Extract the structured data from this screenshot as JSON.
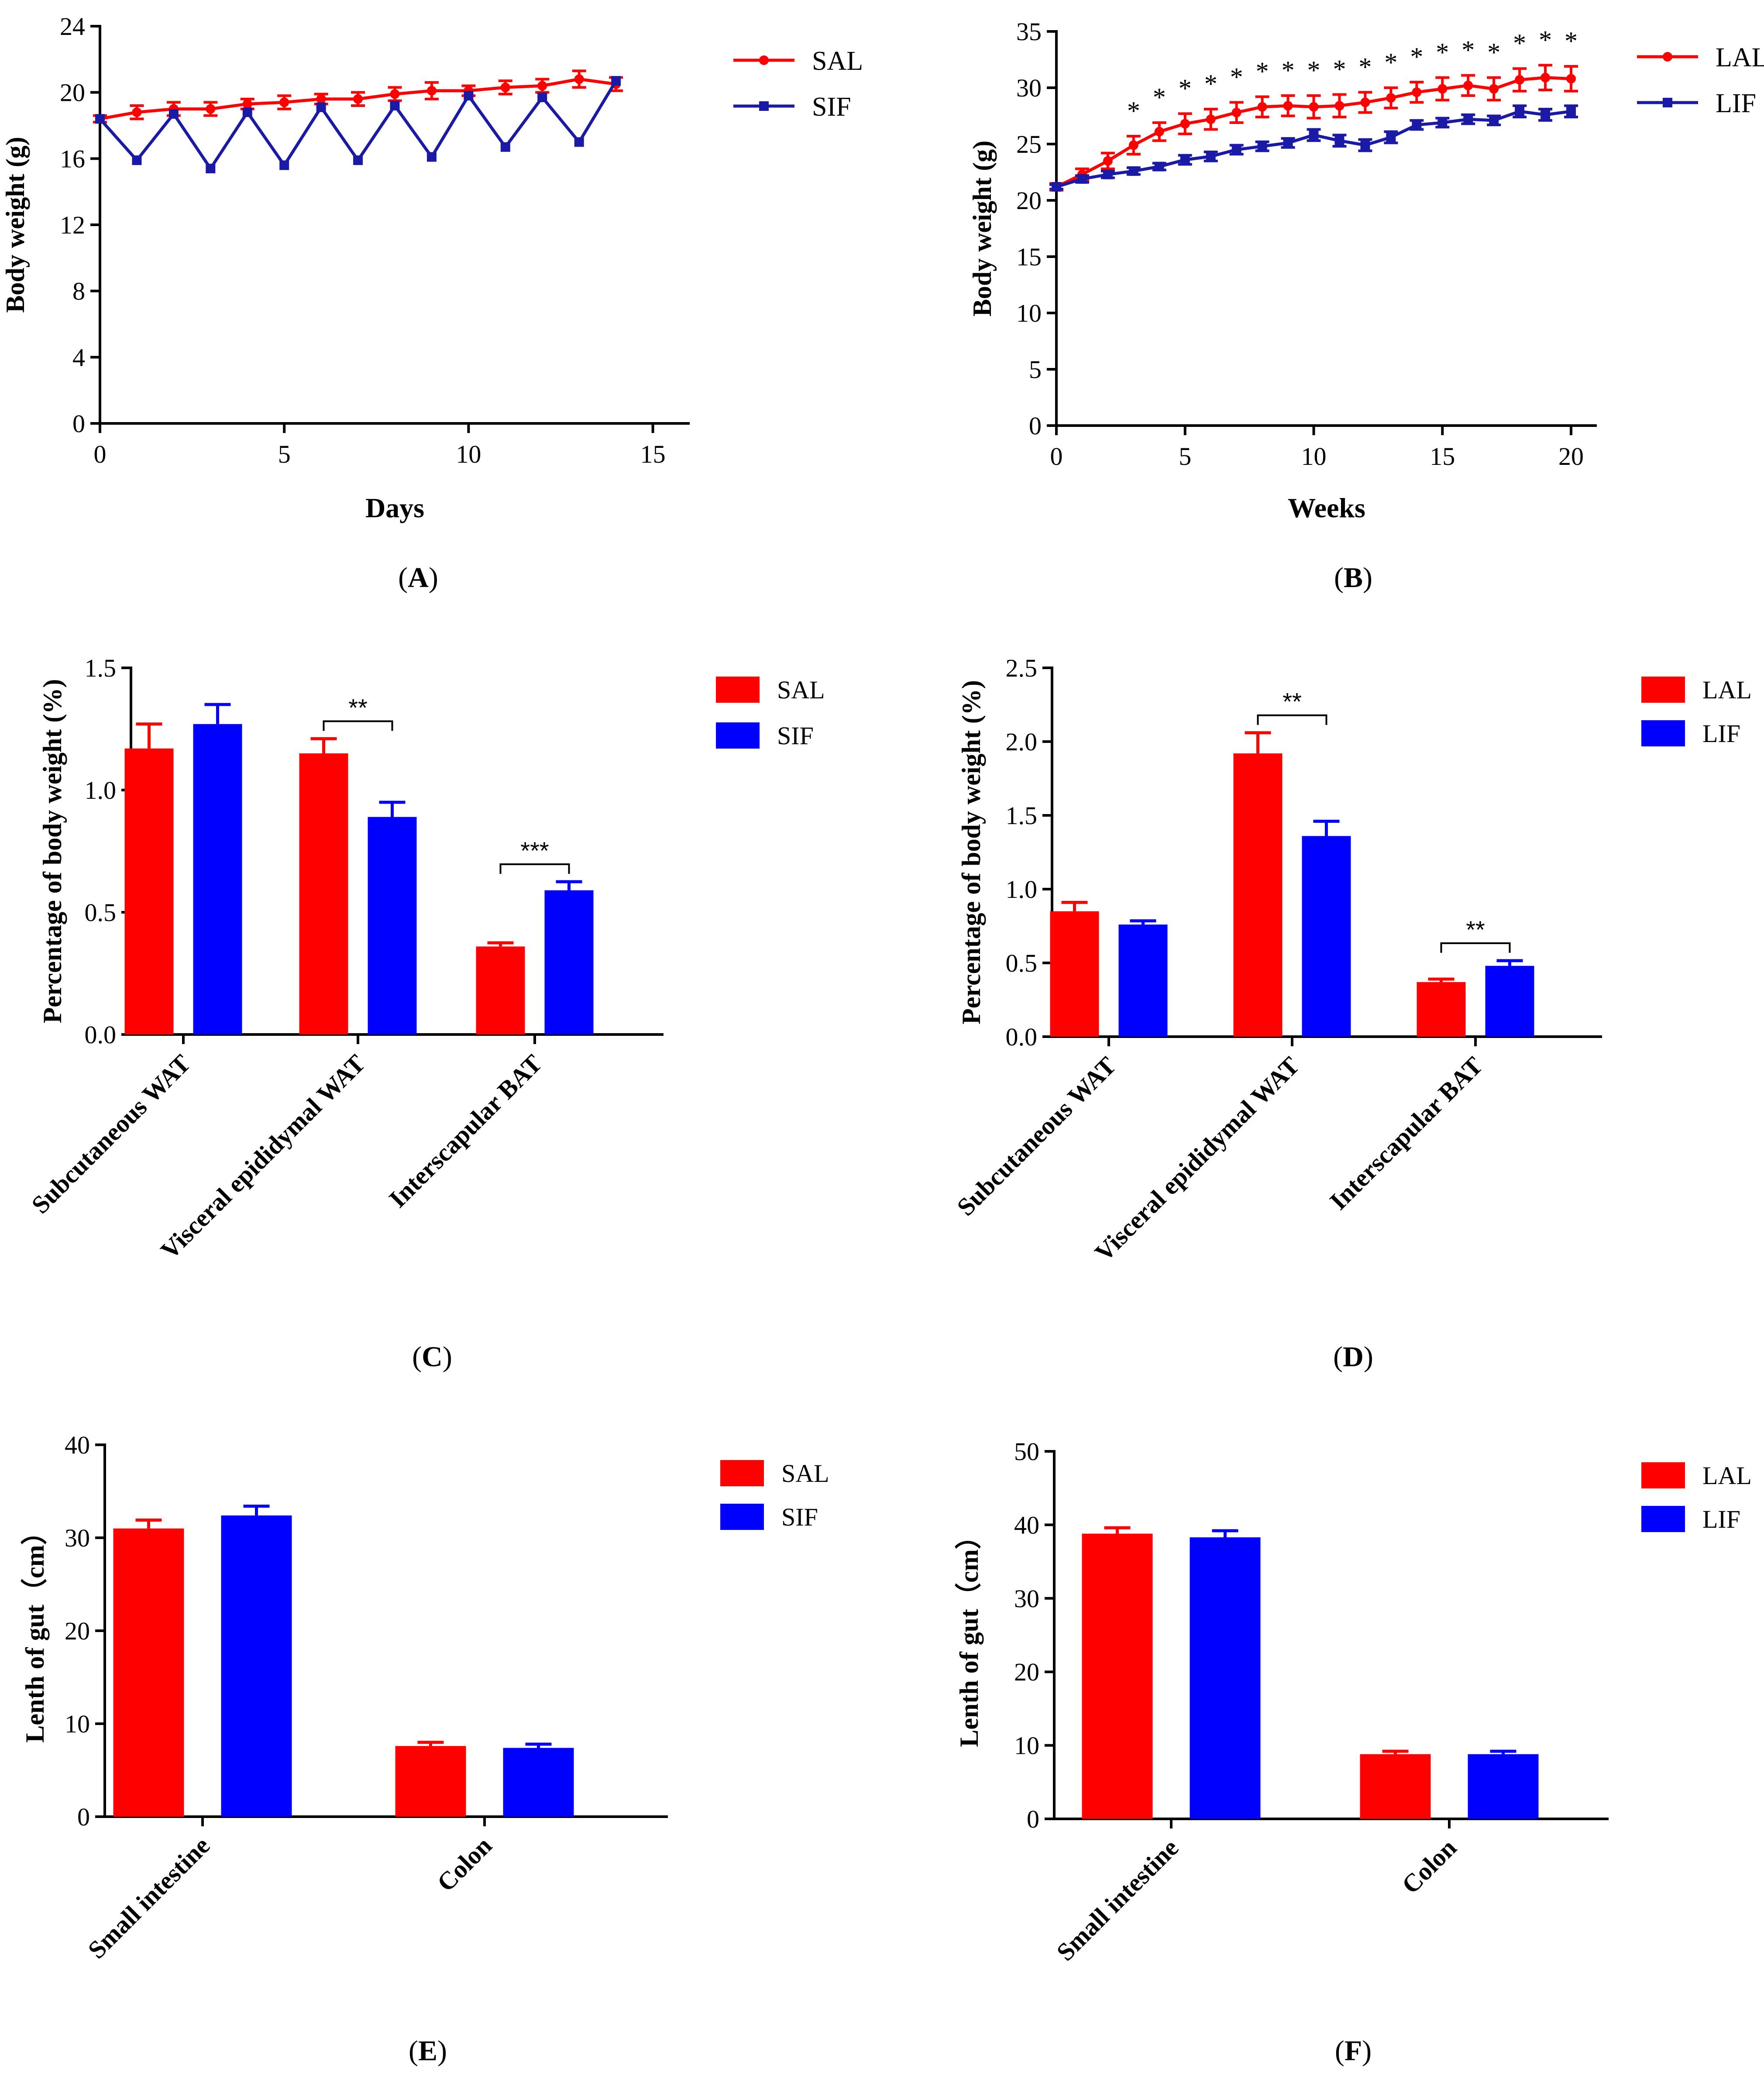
{
  "colors": {
    "red": "#ff0000",
    "blue": "#0000ff",
    "navy": "#1a1aa6",
    "axis": "#000000"
  },
  "chart_data": [
    {
      "id": "A",
      "panel_label": "A",
      "type": "line",
      "xlabel": "Days",
      "ylabel": "Body weight (g)",
      "xlim": [
        0,
        16
      ],
      "ylim": [
        0,
        24
      ],
      "xticks": [
        0,
        5,
        10,
        15
      ],
      "yticks": [
        0,
        4,
        8,
        12,
        16,
        20,
        24
      ],
      "series": [
        {
          "name": "SAL",
          "color": "#ff0000",
          "marker": "circle",
          "x": [
            0,
            1,
            2,
            3,
            4,
            5,
            6,
            7,
            8,
            9,
            10,
            11,
            12,
            13,
            14
          ],
          "y": [
            18.4,
            18.8,
            19.0,
            19.0,
            19.3,
            19.4,
            19.6,
            19.6,
            19.9,
            20.1,
            20.1,
            20.3,
            20.4,
            20.8,
            20.5
          ],
          "err": [
            0.2,
            0.4,
            0.4,
            0.4,
            0.3,
            0.4,
            0.3,
            0.4,
            0.4,
            0.5,
            0.3,
            0.4,
            0.4,
            0.5,
            0.4
          ]
        },
        {
          "name": "SIF",
          "color": "#1a1aa6",
          "marker": "square",
          "x": [
            0,
            1,
            2,
            3,
            4,
            5,
            6,
            7,
            8,
            9,
            10,
            11,
            12,
            13,
            14
          ],
          "y": [
            18.4,
            15.9,
            18.7,
            15.4,
            18.8,
            15.6,
            19.1,
            15.9,
            19.2,
            16.1,
            19.8,
            16.7,
            19.7,
            17.0,
            20.7
          ],
          "err": [
            0,
            0,
            0,
            0,
            0,
            0,
            0,
            0,
            0,
            0,
            0,
            0,
            0,
            0,
            0
          ]
        }
      ]
    },
    {
      "id": "B",
      "panel_label": "B",
      "type": "line",
      "xlabel": "Weeks",
      "ylabel": "Body weight (g)",
      "xlim": [
        0,
        21
      ],
      "ylim": [
        0,
        35
      ],
      "xticks": [
        0,
        5,
        10,
        15,
        20
      ],
      "yticks": [
        0,
        5,
        10,
        15,
        20,
        25,
        30,
        35
      ],
      "significance_x": [
        3,
        4,
        5,
        6,
        7,
        8,
        9,
        10,
        11,
        12,
        13,
        14,
        15,
        16,
        17,
        18,
        19,
        20
      ],
      "significance_label": "*",
      "series": [
        {
          "name": "LAL",
          "color": "#ff0000",
          "marker": "circle",
          "x": [
            0,
            1,
            2,
            3,
            4,
            5,
            6,
            7,
            8,
            9,
            10,
            11,
            12,
            13,
            14,
            15,
            16,
            17,
            18,
            19,
            20
          ],
          "y": [
            21.2,
            22.3,
            23.5,
            24.9,
            26.1,
            26.8,
            27.2,
            27.8,
            28.3,
            28.4,
            28.3,
            28.4,
            28.7,
            29.1,
            29.6,
            29.9,
            30.2,
            29.9,
            30.7,
            30.9,
            30.8
          ],
          "err": [
            0.3,
            0.5,
            0.7,
            0.8,
            0.8,
            0.9,
            0.9,
            0.9,
            0.9,
            0.9,
            1.0,
            1.0,
            0.9,
            0.9,
            0.9,
            1.0,
            0.9,
            1.0,
            1.0,
            1.1,
            1.1
          ]
        },
        {
          "name": "LIF",
          "color": "#1a1aa6",
          "marker": "square",
          "x": [
            0,
            1,
            2,
            3,
            4,
            5,
            6,
            7,
            8,
            9,
            10,
            11,
            12,
            13,
            14,
            15,
            16,
            17,
            18,
            19,
            20
          ],
          "y": [
            21.2,
            21.9,
            22.3,
            22.6,
            23.0,
            23.6,
            23.9,
            24.5,
            24.8,
            25.1,
            25.8,
            25.3,
            24.9,
            25.6,
            26.7,
            26.9,
            27.2,
            27.1,
            27.9,
            27.6,
            27.9
          ],
          "err": [
            0.2,
            0.3,
            0.3,
            0.3,
            0.3,
            0.4,
            0.4,
            0.4,
            0.4,
            0.4,
            0.5,
            0.5,
            0.5,
            0.5,
            0.4,
            0.4,
            0.4,
            0.4,
            0.5,
            0.5,
            0.5
          ]
        }
      ]
    },
    {
      "id": "C",
      "panel_label": "C",
      "type": "bar",
      "xlabel": "",
      "ylabel": "Percentage of body weight (%)",
      "ylim": [
        0,
        1.5
      ],
      "yticks": [
        0.0,
        0.5,
        1.0,
        1.5
      ],
      "tick_decimals": 1,
      "categories": [
        "Subcutaneous WAT",
        "Visceral epididymal WAT",
        "Interscapular BAT"
      ],
      "series": [
        {
          "name": "SAL",
          "color": "#ff0000",
          "values": [
            1.17,
            1.15,
            0.36
          ],
          "err": [
            0.1,
            0.06,
            0.015
          ]
        },
        {
          "name": "SIF",
          "color": "#0000ff",
          "values": [
            1.27,
            0.89,
            0.59
          ],
          "err": [
            0.08,
            0.06,
            0.035
          ]
        }
      ],
      "significance": [
        {
          "category_index": 1,
          "label": "**"
        },
        {
          "category_index": 2,
          "label": "***"
        }
      ]
    },
    {
      "id": "D",
      "panel_label": "D",
      "type": "bar",
      "xlabel": "",
      "ylabel": "Percentage of body weight (%)",
      "ylim": [
        0,
        2.5
      ],
      "yticks": [
        0.0,
        0.5,
        1.0,
        1.5,
        2.0,
        2.5
      ],
      "tick_decimals": 1,
      "categories": [
        "Subcutaneous WAT",
        "Visceral epididymal WAT",
        "Interscapular BAT"
      ],
      "series": [
        {
          "name": "LAL",
          "color": "#ff0000",
          "values": [
            0.85,
            1.92,
            0.37
          ],
          "err": [
            0.06,
            0.14,
            0.02
          ]
        },
        {
          "name": "LIF",
          "color": "#0000ff",
          "values": [
            0.76,
            1.36,
            0.48
          ],
          "err": [
            0.025,
            0.1,
            0.035
          ]
        }
      ],
      "significance": [
        {
          "category_index": 1,
          "label": "**"
        },
        {
          "category_index": 2,
          "label": "**"
        }
      ]
    },
    {
      "id": "E",
      "panel_label": "E",
      "type": "bar",
      "xlabel": "",
      "ylabel": "Lenth of gut（cm）",
      "ylim": [
        0,
        40
      ],
      "yticks": [
        0,
        10,
        20,
        30,
        40
      ],
      "tick_decimals": 0,
      "categories": [
        "Small intestine",
        "Colon"
      ],
      "series": [
        {
          "name": "SAL",
          "color": "#ff0000",
          "values": [
            31.0,
            7.6
          ],
          "err": [
            0.9,
            0.4
          ]
        },
        {
          "name": "SIF",
          "color": "#0000ff",
          "values": [
            32.4,
            7.4
          ],
          "err": [
            1.0,
            0.4
          ]
        }
      ],
      "significance": []
    },
    {
      "id": "F",
      "panel_label": "F",
      "type": "bar",
      "xlabel": "",
      "ylabel": "Lenth of gut（cm）",
      "ylim": [
        0,
        50
      ],
      "yticks": [
        0,
        10,
        20,
        30,
        40,
        50
      ],
      "tick_decimals": 0,
      "categories": [
        "Small intestine",
        "Colon"
      ],
      "series": [
        {
          "name": "LAL",
          "color": "#ff0000",
          "values": [
            38.8,
            8.8
          ],
          "err": [
            0.8,
            0.4
          ]
        },
        {
          "name": "LIF",
          "color": "#0000ff",
          "values": [
            38.3,
            8.8
          ],
          "err": [
            0.9,
            0.4
          ]
        }
      ],
      "significance": []
    }
  ]
}
